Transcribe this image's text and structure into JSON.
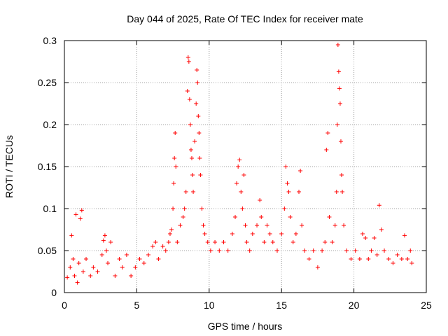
{
  "colors": {
    "points": "#ff0000",
    "grid": "#a0a0a0",
    "axes": "#000000",
    "background": "#ffffff"
  },
  "chart_data": {
    "type": "scatter",
    "title": "Day 044 of 2025, Rate Of TEC Index for receiver mate",
    "xlabel": "GPS time / hours",
    "ylabel": "ROTI / TECUs",
    "xlim": [
      0,
      25
    ],
    "ylim": [
      0,
      0.3
    ],
    "x_ticks": [
      0,
      5,
      10,
      15,
      20,
      25
    ],
    "x_tick_labels": [
      "0",
      "5",
      "10",
      "15",
      "20",
      "25"
    ],
    "y_ticks": [
      0,
      0.05,
      0.1,
      0.15,
      0.2,
      0.25,
      0.3
    ],
    "y_tick_labels": [
      "0",
      "0.05",
      "0.1",
      "0.15",
      "0.2",
      "0.25",
      "0.3"
    ],
    "grid": true,
    "marker": "+",
    "series": [
      {
        "name": "",
        "color": "#ff0000",
        "points": [
          [
            0.2,
            0.018
          ],
          [
            0.4,
            0.03
          ],
          [
            0.5,
            0.068
          ],
          [
            0.6,
            0.04
          ],
          [
            0.7,
            0.02
          ],
          [
            0.8,
            0.093
          ],
          [
            0.9,
            0.012
          ],
          [
            1.0,
            0.035
          ],
          [
            1.1,
            0.088
          ],
          [
            1.2,
            0.098
          ],
          [
            1.3,
            0.025
          ],
          [
            1.5,
            0.04
          ],
          [
            1.8,
            0.02
          ],
          [
            2.0,
            0.03
          ],
          [
            2.3,
            0.025
          ],
          [
            2.6,
            0.045
          ],
          [
            2.7,
            0.062
          ],
          [
            2.8,
            0.068
          ],
          [
            2.9,
            0.05
          ],
          [
            3.0,
            0.035
          ],
          [
            3.2,
            0.06
          ],
          [
            3.5,
            0.02
          ],
          [
            3.8,
            0.04
          ],
          [
            4.0,
            0.03
          ],
          [
            4.3,
            0.045
          ],
          [
            4.6,
            0.02
          ],
          [
            4.9,
            0.03
          ],
          [
            5.2,
            0.04
          ],
          [
            5.5,
            0.035
          ],
          [
            5.8,
            0.045
          ],
          [
            6.1,
            0.055
          ],
          [
            6.3,
            0.06
          ],
          [
            6.5,
            0.04
          ],
          [
            6.8,
            0.055
          ],
          [
            7.0,
            0.05
          ],
          [
            7.2,
            0.06
          ],
          [
            7.3,
            0.07
          ],
          [
            7.4,
            0.075
          ],
          [
            7.5,
            0.1
          ],
          [
            7.55,
            0.13
          ],
          [
            7.6,
            0.16
          ],
          [
            7.65,
            0.19
          ],
          [
            7.7,
            0.15
          ],
          [
            7.8,
            0.06
          ],
          [
            8.0,
            0.08
          ],
          [
            8.2,
            0.09
          ],
          [
            8.3,
            0.1
          ],
          [
            8.4,
            0.12
          ],
          [
            8.5,
            0.24
          ],
          [
            8.55,
            0.28
          ],
          [
            8.6,
            0.275
          ],
          [
            8.65,
            0.23
          ],
          [
            8.7,
            0.2
          ],
          [
            8.75,
            0.17
          ],
          [
            8.8,
            0.16
          ],
          [
            8.85,
            0.14
          ],
          [
            8.9,
            0.12
          ],
          [
            9.0,
            0.18
          ],
          [
            9.1,
            0.225
          ],
          [
            9.15,
            0.265
          ],
          [
            9.2,
            0.25
          ],
          [
            9.25,
            0.21
          ],
          [
            9.3,
            0.19
          ],
          [
            9.35,
            0.16
          ],
          [
            9.4,
            0.14
          ],
          [
            9.5,
            0.1
          ],
          [
            9.6,
            0.08
          ],
          [
            9.7,
            0.07
          ],
          [
            9.9,
            0.06
          ],
          [
            10.1,
            0.05
          ],
          [
            10.4,
            0.06
          ],
          [
            10.7,
            0.05
          ],
          [
            11.0,
            0.06
          ],
          [
            11.3,
            0.05
          ],
          [
            11.6,
            0.07
          ],
          [
            11.8,
            0.09
          ],
          [
            11.9,
            0.13
          ],
          [
            12.0,
            0.15
          ],
          [
            12.1,
            0.158
          ],
          [
            12.2,
            0.12
          ],
          [
            12.3,
            0.1
          ],
          [
            12.4,
            0.14
          ],
          [
            12.5,
            0.08
          ],
          [
            12.6,
            0.06
          ],
          [
            12.8,
            0.05
          ],
          [
            13.0,
            0.07
          ],
          [
            13.3,
            0.08
          ],
          [
            13.5,
            0.11
          ],
          [
            13.6,
            0.09
          ],
          [
            13.8,
            0.06
          ],
          [
            14.0,
            0.08
          ],
          [
            14.2,
            0.07
          ],
          [
            14.4,
            0.06
          ],
          [
            14.7,
            0.05
          ],
          [
            15.0,
            0.07
          ],
          [
            15.2,
            0.1
          ],
          [
            15.3,
            0.15
          ],
          [
            15.4,
            0.13
          ],
          [
            15.5,
            0.12
          ],
          [
            15.6,
            0.09
          ],
          [
            15.8,
            0.06
          ],
          [
            16.0,
            0.07
          ],
          [
            16.2,
            0.12
          ],
          [
            16.3,
            0.145
          ],
          [
            16.4,
            0.08
          ],
          [
            16.6,
            0.05
          ],
          [
            16.9,
            0.04
          ],
          [
            17.2,
            0.05
          ],
          [
            17.5,
            0.03
          ],
          [
            17.8,
            0.05
          ],
          [
            18.0,
            0.06
          ],
          [
            18.1,
            0.17
          ],
          [
            18.2,
            0.19
          ],
          [
            18.3,
            0.09
          ],
          [
            18.5,
            0.06
          ],
          [
            18.7,
            0.08
          ],
          [
            18.8,
            0.12
          ],
          [
            18.85,
            0.2
          ],
          [
            18.9,
            0.295
          ],
          [
            18.95,
            0.263
          ],
          [
            19.0,
            0.243
          ],
          [
            19.05,
            0.225
          ],
          [
            19.1,
            0.18
          ],
          [
            19.15,
            0.14
          ],
          [
            19.2,
            0.12
          ],
          [
            19.3,
            0.08
          ],
          [
            19.5,
            0.05
          ],
          [
            19.8,
            0.04
          ],
          [
            20.1,
            0.05
          ],
          [
            20.4,
            0.04
          ],
          [
            20.6,
            0.07
          ],
          [
            20.8,
            0.065
          ],
          [
            21.0,
            0.04
          ],
          [
            21.2,
            0.05
          ],
          [
            21.4,
            0.065
          ],
          [
            21.6,
            0.045
          ],
          [
            21.75,
            0.104
          ],
          [
            21.9,
            0.075
          ],
          [
            22.1,
            0.05
          ],
          [
            22.4,
            0.04
          ],
          [
            22.7,
            0.035
          ],
          [
            23.0,
            0.045
          ],
          [
            23.3,
            0.04
          ],
          [
            23.5,
            0.068
          ],
          [
            23.7,
            0.04
          ],
          [
            23.9,
            0.05
          ],
          [
            24.0,
            0.035
          ]
        ]
      }
    ]
  }
}
